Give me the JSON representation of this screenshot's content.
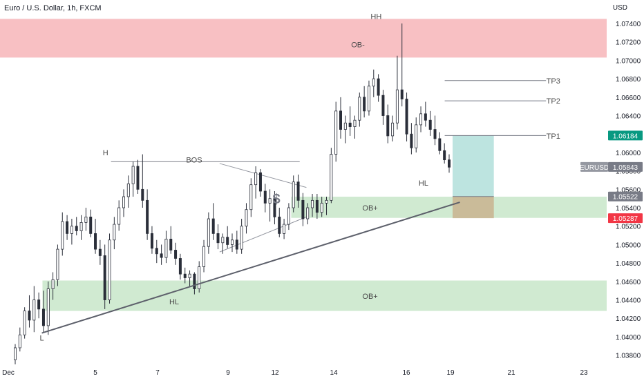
{
  "header": {
    "title": "Euro / U.S. Dollar, 1h, FXCM",
    "currency": "USD"
  },
  "chart_data": {
    "type": "candlestick",
    "symbol": "EURUSD",
    "y_ticks": [
      "1.07400",
      "1.07200",
      "1.07000",
      "1.06800",
      "1.06600",
      "1.06400",
      "1.06200",
      "1.06000",
      "1.05800",
      "1.05600",
      "1.05400",
      "1.05200",
      "1.05000",
      "1.04800",
      "1.04600",
      "1.04400",
      "1.04200",
      "1.04000",
      "1.03800"
    ],
    "x_ticks": [
      "Dec",
      "5",
      "7",
      "9",
      "12",
      "14",
      "16",
      "19",
      "21",
      "23"
    ],
    "ylim": [
      1.037,
      1.0752
    ],
    "price_labels": [
      {
        "text": "1.06184",
        "value": 1.06184,
        "color": "#089981",
        "type": "tp"
      },
      {
        "text": "EURUSD",
        "value": 1.05843,
        "color": "#9598a1",
        "type": "symbol"
      },
      {
        "text": "1.05843",
        "value": 1.05843,
        "color": "#787b86",
        "type": "last"
      },
      {
        "text": "1.05522",
        "value": 1.05522,
        "color": "#787b86",
        "type": "entry"
      },
      {
        "text": "1.05287",
        "value": 1.05287,
        "color": "#f23645",
        "type": "stop"
      }
    ],
    "zones": [
      {
        "label": "OB-",
        "color": "#f7b5b9",
        "top": 1.0745,
        "bottom": 1.0703,
        "x_from": 0.0,
        "x_to": 1.0
      },
      {
        "label": "OB+",
        "color": "#c8e6c9",
        "top": 1.0552,
        "bottom": 1.0529,
        "x_from": 0.48,
        "x_to": 1.0
      },
      {
        "label": "OB+",
        "color": "#c8e6c9",
        "top": 1.0461,
        "bottom": 1.0428,
        "x_from": 0.07,
        "x_to": 1.0
      }
    ],
    "annotations": [
      {
        "text": "HH",
        "x": 0.62,
        "y": 1.0748
      },
      {
        "text": "OB-",
        "x": 0.59,
        "y": 1.0717
      },
      {
        "text": "H",
        "x": 0.174,
        "y": 1.06
      },
      {
        "text": "BOS",
        "x": 0.32,
        "y": 1.0592
      },
      {
        "text": "HL",
        "x": 0.698,
        "y": 1.0567
      },
      {
        "text": "HL",
        "x": 0.287,
        "y": 1.0438
      },
      {
        "text": "L",
        "x": 0.069,
        "y": 1.0399
      },
      {
        "text": "OB+",
        "x": 0.61,
        "y": 1.054
      },
      {
        "text": "OB+",
        "x": 0.61,
        "y": 1.0444
      },
      {
        "text": "TP3",
        "x": 0.912,
        "y": 1.0678
      },
      {
        "text": "TP2",
        "x": 0.912,
        "y": 1.0656
      },
      {
        "text": "TP1",
        "x": 0.912,
        "y": 1.0618
      }
    ],
    "candles": [
      [
        1.0375,
        1.0392,
        1.037,
        1.0388
      ],
      [
        1.0388,
        1.041,
        1.0384,
        1.0402
      ],
      [
        1.0402,
        1.0432,
        1.0398,
        1.0428
      ],
      [
        1.0428,
        1.0445,
        1.041,
        1.0418
      ],
      [
        1.0418,
        1.0455,
        1.0405,
        1.044
      ],
      [
        1.044,
        1.0448,
        1.042,
        1.043
      ],
      [
        1.043,
        1.045,
        1.0404,
        1.0412
      ],
      [
        1.0412,
        1.046,
        1.0402,
        1.0452
      ],
      [
        1.0452,
        1.047,
        1.044,
        1.0462
      ],
      [
        1.0462,
        1.05,
        1.0455,
        1.0495
      ],
      [
        1.0495,
        1.0535,
        1.0488,
        1.0525
      ],
      [
        1.0525,
        1.0532,
        1.0505,
        1.0512
      ],
      [
        1.0512,
        1.0528,
        1.05,
        1.052
      ],
      [
        1.052,
        1.053,
        1.051,
        1.0515
      ],
      [
        1.0515,
        1.0532,
        1.0505,
        1.0524
      ],
      [
        1.0524,
        1.054,
        1.0515,
        1.053
      ],
      [
        1.053,
        1.0538,
        1.0508,
        1.0512
      ],
      [
        1.0512,
        1.0528,
        1.049,
        1.0495
      ],
      [
        1.0495,
        1.0505,
        1.0478,
        1.0488
      ],
      [
        1.0488,
        1.05,
        1.043,
        1.044
      ],
      [
        1.044,
        1.0512,
        1.0436,
        1.0505
      ],
      [
        1.0505,
        1.053,
        1.0495,
        1.0522
      ],
      [
        1.0522,
        1.0548,
        1.0515,
        1.054
      ],
      [
        1.054,
        1.056,
        1.053,
        1.0552
      ],
      [
        1.0552,
        1.0575,
        1.054,
        1.0566
      ],
      [
        1.0566,
        1.059,
        1.0552,
        1.0585
      ],
      [
        1.0585,
        1.0592,
        1.0555,
        1.056
      ],
      [
        1.056,
        1.0598,
        1.054,
        1.0548
      ],
      [
        1.0548,
        1.056,
        1.0505,
        1.0512
      ],
      [
        1.0512,
        1.052,
        1.049,
        1.0496
      ],
      [
        1.0496,
        1.0505,
        1.048,
        1.049
      ],
      [
        1.049,
        1.05,
        1.0478,
        1.0486
      ],
      [
        1.0486,
        1.0515,
        1.048,
        1.0506
      ],
      [
        1.0506,
        1.052,
        1.049,
        1.0494
      ],
      [
        1.0494,
        1.0502,
        1.0478,
        1.0485
      ],
      [
        1.0485,
        1.049,
        1.0462,
        1.0468
      ],
      [
        1.0468,
        1.0475,
        1.0458,
        1.0464
      ],
      [
        1.0464,
        1.0472,
        1.0455,
        1.0468
      ],
      [
        1.0468,
        1.047,
        1.0446,
        1.0452
      ],
      [
        1.0452,
        1.0482,
        1.0448,
        1.0476
      ],
      [
        1.0476,
        1.0505,
        1.047,
        1.0498
      ],
      [
        1.0498,
        1.0535,
        1.049,
        1.0528
      ],
      [
        1.0528,
        1.0545,
        1.0505,
        1.0512
      ],
      [
        1.0512,
        1.0522,
        1.0495,
        1.0502
      ],
      [
        1.0502,
        1.0512,
        1.049,
        1.0508
      ],
      [
        1.0508,
        1.052,
        1.0496,
        1.05
      ],
      [
        1.05,
        1.0512,
        1.0492,
        1.0505
      ],
      [
        1.0505,
        1.0515,
        1.049,
        1.0495
      ],
      [
        1.0495,
        1.0528,
        1.049,
        1.052
      ],
      [
        1.052,
        1.0545,
        1.0512,
        1.0538
      ],
      [
        1.0538,
        1.0572,
        1.053,
        1.0565
      ],
      [
        1.0565,
        1.0585,
        1.055,
        1.0578
      ],
      [
        1.0578,
        1.0582,
        1.0552,
        1.0558
      ],
      [
        1.0558,
        1.0566,
        1.0535,
        1.0545
      ],
      [
        1.0545,
        1.056,
        1.0525,
        1.055
      ],
      [
        1.055,
        1.0558,
        1.0522,
        1.053
      ],
      [
        1.053,
        1.054,
        1.0508,
        1.0512
      ],
      [
        1.0512,
        1.0528,
        1.0506,
        1.0522
      ],
      [
        1.0522,
        1.0545,
        1.0516,
        1.054
      ],
      [
        1.054,
        1.0575,
        1.0535,
        1.0568
      ],
      [
        1.0568,
        1.0576,
        1.054,
        1.0548
      ],
      [
        1.0548,
        1.0556,
        1.052,
        1.0528
      ],
      [
        1.0528,
        1.0545,
        1.0522,
        1.054
      ],
      [
        1.054,
        1.0555,
        1.053,
        1.0548
      ],
      [
        1.0548,
        1.0555,
        1.0528,
        1.0535
      ],
      [
        1.0535,
        1.0552,
        1.053,
        1.0545
      ],
      [
        1.0545,
        1.0552,
        1.0532,
        1.0548
      ],
      [
        1.0548,
        1.0605,
        1.0545,
        1.0598
      ],
      [
        1.0598,
        1.0655,
        1.059,
        1.0645
      ],
      [
        1.0645,
        1.066,
        1.0615,
        1.0625
      ],
      [
        1.0625,
        1.064,
        1.061,
        1.0632
      ],
      [
        1.0632,
        1.065,
        1.0618,
        1.0628
      ],
      [
        1.0628,
        1.064,
        1.0615,
        1.0635
      ],
      [
        1.0635,
        1.0665,
        1.0628,
        1.066
      ],
      [
        1.066,
        1.0672,
        1.0638,
        1.0645
      ],
      [
        1.0645,
        1.0678,
        1.064,
        1.0672
      ],
      [
        1.0672,
        1.069,
        1.066,
        1.068
      ],
      [
        1.068,
        1.0685,
        1.0655,
        1.0662
      ],
      [
        1.0662,
        1.0668,
        1.063,
        1.064
      ],
      [
        1.064,
        1.0652,
        1.061,
        1.0618
      ],
      [
        1.0618,
        1.064,
        1.0612,
        1.0632
      ],
      [
        1.0632,
        1.0705,
        1.0625,
        1.0668
      ],
      [
        1.0668,
        1.074,
        1.065,
        1.0658
      ],
      [
        1.0658,
        1.0665,
        1.0612,
        1.062
      ],
      [
        1.062,
        1.0632,
        1.0598,
        1.0605
      ],
      [
        1.0605,
        1.0638,
        1.06,
        1.063
      ],
      [
        1.063,
        1.065,
        1.0622,
        1.0642
      ],
      [
        1.0642,
        1.0655,
        1.0628,
        1.0635
      ],
      [
        1.0635,
        1.0645,
        1.0618,
        1.0625
      ],
      [
        1.0625,
        1.064,
        1.0608,
        1.0615
      ],
      [
        1.0615,
        1.0622,
        1.0598,
        1.0602
      ],
      [
        1.0602,
        1.061,
        1.0588,
        1.0592
      ],
      [
        1.0592,
        1.0598,
        1.0578,
        1.0584
      ]
    ],
    "bos_line": {
      "x1": 0.183,
      "x2": 0.494,
      "y": 1.059
    },
    "trendline": {
      "x1": 0.069,
      "y1": 1.0404,
      "x2": 0.758,
      "y2": 1.0546
    },
    "wedge": {
      "x1": 0.362,
      "x2": 0.505,
      "y_top1": 1.0588,
      "y_top2": 1.0562,
      "y_bot1": 1.0492,
      "y_bot2": 1.053
    },
    "position": {
      "x1": 0.746,
      "x2": 0.814,
      "tp": 1.06184,
      "entry": 1.05522,
      "stop": 1.05287
    },
    "tp_lines": [
      {
        "label": "TP3",
        "value": 1.0678,
        "x1": 0.733,
        "x2": 0.9
      },
      {
        "label": "TP2",
        "value": 1.0656,
        "x1": 0.733,
        "x2": 0.9
      },
      {
        "label": "TP1",
        "value": 1.06184,
        "x1": 0.733,
        "x2": 0.9
      }
    ],
    "grid": false
  }
}
